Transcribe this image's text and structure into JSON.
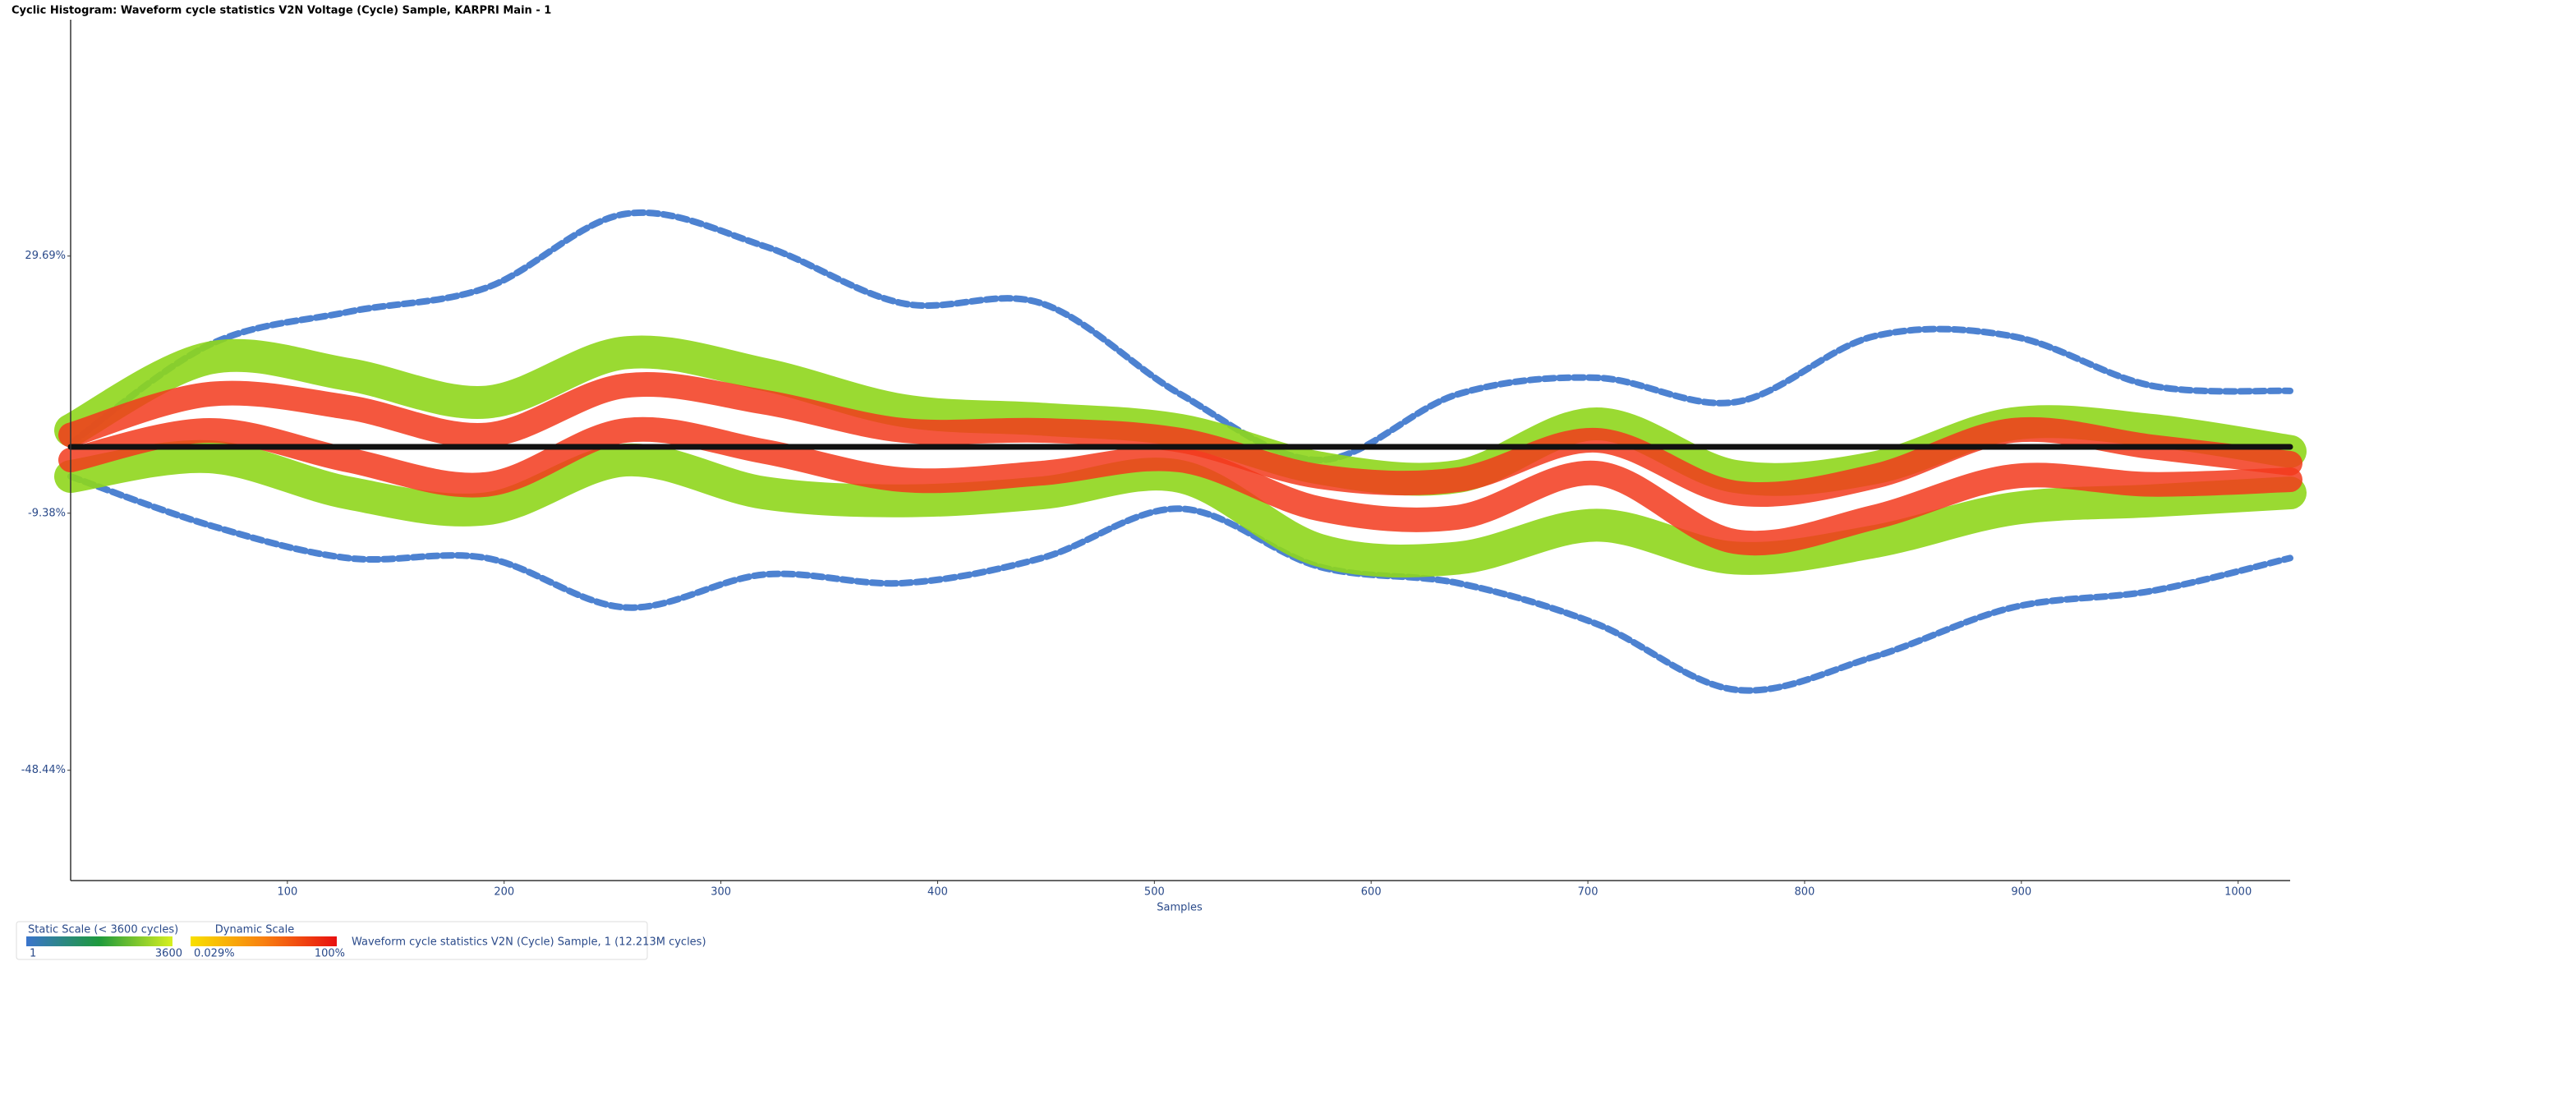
{
  "chart_data": {
    "type": "cyclic-histogram",
    "title": "Cyclic Histogram: Waveform cycle statistics V2N Voltage (Cycle) Sample, KARPRI Main - 1",
    "x_label": "Samples",
    "x": [
      0,
      64,
      128,
      192,
      256,
      320,
      384,
      448,
      512,
      576,
      640,
      704,
      768,
      832,
      896,
      960,
      1024
    ],
    "xlim": [
      0,
      1024
    ],
    "xticks": [
      100,
      200,
      300,
      400,
      500,
      600,
      700,
      800,
      900,
      1000
    ],
    "ylim": [
      -65.2,
      65.6
    ],
    "yticks": [
      {
        "value": 29.69,
        "label": "29.69%"
      },
      {
        "value": -9.38,
        "label": "-9.38%"
      },
      {
        "value": -48.44,
        "label": "-48.44%"
      }
    ],
    "series": [
      {
        "color": "#3a74cc",
        "values": [
          1.2,
          16.2,
          21.2,
          24.9,
          36.1,
          31.2,
          22.5,
          22.5,
          8.7,
          -1.3,
          8.7,
          11.2,
          7.5,
          17.5,
          17.5,
          10.0,
          9.2
        ]
      },
      {
        "color": "#3a74cc",
        "values": [
          -3.8,
          -11.2,
          -16.2,
          -16.2,
          -23.7,
          -18.7,
          -20.0,
          -16.2,
          -8.7,
          -17.5,
          -20.0,
          -26.2,
          -36.2,
          -31.2,
          -23.7,
          -21.2,
          -16.2
        ]
      },
      {
        "color": "#8fd61c",
        "values": [
          3.2,
          14.2,
          11.7,
          7.5,
          15.0,
          11.7,
          6.2,
          4.9,
          3.2,
          -2.5,
          -3.8,
          4.2,
          -3.8,
          -2.5,
          4.2,
          3.2,
          0
        ]
      },
      {
        "color": "#8fd61c",
        "values": [
          -3.8,
          -0.8,
          -6.3,
          -8.7,
          -1.3,
          -6.3,
          -7.5,
          -6.3,
          -3.8,
          -15.0,
          -16.2,
          -11.2,
          -16.2,
          -13.7,
          -8.7,
          -7.5,
          -6.3
        ]
      },
      {
        "color": "#f23a1c",
        "values": [
          2.5,
          8.7,
          6.7,
          2.5,
          10.0,
          7.5,
          3.2,
          3.2,
          1.7,
          -3.8,
          -4.3,
          1.7,
          -6.3,
          -3.8,
          3.2,
          0.7,
          -1.8
        ]
      },
      {
        "color": "#f23a1c",
        "values": [
          -1.3,
          3.2,
          -1.3,
          -5.0,
          3.2,
          0,
          -4.3,
          -3.3,
          -1.3,
          -8.7,
          -10.0,
          -3.3,
          -13.7,
          -10.0,
          -3.8,
          -5.0,
          -4.3
        ]
      },
      {
        "color": "#111111",
        "values": [
          0.7,
          0.7,
          0.7,
          0.7,
          0.7,
          0.7,
          0.7,
          0.7,
          0.7,
          0.7,
          0.7,
          0.7,
          0.7,
          0.7,
          0.7,
          0.7,
          0.7
        ]
      }
    ],
    "legend": {
      "static_label": "Static Scale (< 3600 cycles)",
      "static_min": 1,
      "static_max": 3600,
      "dynamic_label": "Dynamic Scale",
      "dynamic_min": "0.029%",
      "dynamic_max": "100%",
      "series_label": "Waveform cycle statistics V2N (Cycle) Sample, 1 (12.213M cycles)"
    }
  }
}
